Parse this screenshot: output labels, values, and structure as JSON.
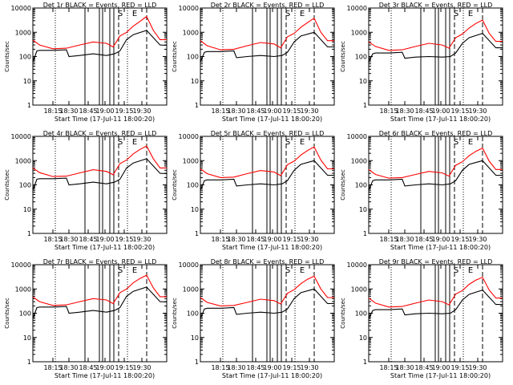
{
  "colors": {
    "background": "#ffffff",
    "axes": "#000000",
    "events": "#000000",
    "lld": "#ff0000"
  },
  "chart_data": [
    {
      "type": "line",
      "title": "Det 1r BLACK = Events, RED = LLD",
      "xlabel": "Start Time (17-Jul-11 18:00:20)",
      "ylabel": "Counts/sec",
      "xticks": [
        "18:15",
        "18:30",
        "18:45",
        "19:00",
        "19:15",
        "19:30"
      ],
      "yticks": [
        "1",
        "10",
        "100",
        "1000",
        "10000"
      ],
      "yscale": "log",
      "ylim": [
        1,
        10000
      ],
      "xlim": [
        0,
        100
      ],
      "markers": [
        "S",
        "E"
      ],
      "series": [
        {
          "name": "Events",
          "color": "#000000",
          "x": [
            0,
            3,
            5,
            15,
            25,
            27,
            35,
            45,
            55,
            61,
            65,
            70,
            75,
            85,
            95,
            100
          ],
          "y": [
            60,
            170,
            180,
            180,
            190,
            100,
            110,
            130,
            110,
            130,
            170,
            500,
            800,
            1200,
            300,
            290
          ]
        },
        {
          "name": "LLD",
          "color": "#ff0000",
          "x": [
            0,
            5,
            15,
            25,
            35,
            45,
            55,
            60,
            65,
            70,
            75,
            80,
            85,
            90,
            95,
            100
          ],
          "y": [
            480,
            300,
            210,
            220,
            300,
            400,
            350,
            250,
            700,
            1000,
            1800,
            2800,
            4500,
            1200,
            500,
            500
          ]
        }
      ]
    },
    {
      "type": "line",
      "title": "Det 2r BLACK = Events, RED = LLD",
      "xlabel": "Start Time (17-Jul-11 18:00:20)",
      "ylabel": "Counts/sec",
      "xticks": [
        "18:15",
        "18:30",
        "18:45",
        "19:00",
        "19:15",
        "19:30"
      ],
      "yticks": [
        "1",
        "10",
        "100",
        "1000",
        "10000"
      ],
      "yscale": "log",
      "ylim": [
        1,
        10000
      ],
      "xlim": [
        0,
        100
      ],
      "markers": [
        "S",
        "E"
      ],
      "series": [
        {
          "name": "Events",
          "color": "#000000",
          "x": [
            0,
            3,
            5,
            15,
            25,
            27,
            35,
            45,
            55,
            61,
            65,
            70,
            75,
            85,
            95,
            100
          ],
          "y": [
            60,
            150,
            160,
            160,
            170,
            90,
            100,
            110,
            100,
            110,
            150,
            400,
            700,
            1000,
            250,
            250
          ]
        },
        {
          "name": "LLD",
          "color": "#ff0000",
          "x": [
            0,
            5,
            15,
            25,
            35,
            45,
            55,
            60,
            65,
            70,
            75,
            80,
            85,
            90,
            95,
            100
          ],
          "y": [
            450,
            280,
            190,
            200,
            280,
            380,
            330,
            230,
            650,
            900,
            1600,
            2500,
            3800,
            1000,
            450,
            450
          ]
        }
      ]
    },
    {
      "type": "line",
      "title": "Det 3r BLACK = Events, RED = LLD",
      "xlabel": "Start Time (17-Jul-11 18:00:20)",
      "ylabel": "Counts/sec",
      "xticks": [
        "18:15",
        "18:30",
        "18:45",
        "19:00",
        "19:15",
        "19:30"
      ],
      "yticks": [
        "1",
        "10",
        "100",
        "1000",
        "10000"
      ],
      "yscale": "log",
      "ylim": [
        1,
        10000
      ],
      "xlim": [
        0,
        100
      ],
      "markers": [
        "S",
        "E"
      ],
      "series": [
        {
          "name": "Events",
          "color": "#000000",
          "x": [
            0,
            3,
            5,
            15,
            25,
            27,
            35,
            45,
            55,
            61,
            65,
            70,
            75,
            85,
            95,
            100
          ],
          "y": [
            60,
            130,
            140,
            140,
            150,
            85,
            95,
            100,
            95,
            100,
            140,
            350,
            600,
            900,
            230,
            230
          ]
        },
        {
          "name": "LLD",
          "color": "#ff0000",
          "x": [
            0,
            5,
            15,
            25,
            35,
            45,
            55,
            60,
            65,
            70,
            75,
            80,
            85,
            90,
            95,
            100
          ],
          "y": [
            400,
            260,
            180,
            190,
            260,
            350,
            300,
            220,
            600,
            850,
            1500,
            2300,
            3200,
            900,
            420,
            420
          ]
        }
      ]
    },
    {
      "type": "line",
      "title": "Det 4r BLACK = Events, RED = LLD",
      "xlabel": "Start Time (17-Jul-11 18:00:20)",
      "ylabel": "Counts/sec",
      "xticks": [
        "18:15",
        "18:30",
        "18:45",
        "19:00",
        "19:15",
        "19:30"
      ],
      "yticks": [
        "1",
        "10",
        "100",
        "1000",
        "10000"
      ],
      "yscale": "log",
      "ylim": [
        1,
        10000
      ],
      "xlim": [
        0,
        100
      ],
      "markers": [
        "S",
        "E"
      ],
      "series": [
        {
          "name": "Events",
          "color": "#000000",
          "x": [
            0,
            3,
            5,
            15,
            25,
            27,
            35,
            45,
            55,
            61,
            65,
            70,
            75,
            85,
            95,
            100
          ],
          "y": [
            60,
            170,
            180,
            180,
            190,
            100,
            110,
            130,
            110,
            130,
            170,
            500,
            800,
            1200,
            300,
            290
          ]
        },
        {
          "name": "LLD",
          "color": "#ff0000",
          "x": [
            0,
            5,
            15,
            25,
            35,
            45,
            55,
            60,
            65,
            70,
            75,
            80,
            85,
            90,
            95,
            100
          ],
          "y": [
            500,
            320,
            220,
            230,
            310,
            420,
            360,
            260,
            750,
            1050,
            1900,
            2900,
            4000,
            1200,
            500,
            500
          ]
        }
      ]
    },
    {
      "type": "line",
      "title": "Det 5r BLACK = Events, RED = LLD",
      "xlabel": "Start Time (17-Jul-11 18:00:20)",
      "ylabel": "Counts/sec",
      "xticks": [
        "18:15",
        "18:30",
        "18:45",
        "19:00",
        "19:15",
        "19:30"
      ],
      "yticks": [
        "1",
        "10",
        "100",
        "1000",
        "10000"
      ],
      "yscale": "log",
      "ylim": [
        1,
        10000
      ],
      "xlim": [
        0,
        100
      ],
      "markers": [
        "S",
        "E"
      ],
      "series": [
        {
          "name": "Events",
          "color": "#000000",
          "x": [
            0,
            3,
            5,
            15,
            25,
            27,
            35,
            45,
            55,
            61,
            65,
            70,
            75,
            85,
            95,
            100
          ],
          "y": [
            60,
            150,
            160,
            160,
            170,
            90,
            100,
            110,
            100,
            110,
            150,
            400,
            700,
            1000,
            250,
            250
          ]
        },
        {
          "name": "LLD",
          "color": "#ff0000",
          "x": [
            0,
            5,
            15,
            25,
            35,
            45,
            55,
            60,
            65,
            70,
            75,
            80,
            85,
            90,
            95,
            100
          ],
          "y": [
            460,
            290,
            200,
            210,
            290,
            390,
            340,
            240,
            680,
            950,
            1700,
            2600,
            3700,
            1050,
            460,
            460
          ]
        }
      ]
    },
    {
      "type": "line",
      "title": "Det 6r BLACK = Events, RED = LLD",
      "xlabel": "Start Time (17-Jul-11 18:00:20)",
      "ylabel": "Counts/sec",
      "xticks": [
        "18:15",
        "18:30",
        "18:45",
        "19:00",
        "19:15",
        "19:30"
      ],
      "yticks": [
        "1",
        "10",
        "100",
        "1000",
        "10000"
      ],
      "yscale": "log",
      "ylim": [
        1,
        10000
      ],
      "xlim": [
        0,
        100
      ],
      "markers": [
        "S",
        "E"
      ],
      "series": [
        {
          "name": "Events",
          "color": "#000000",
          "x": [
            0,
            3,
            5,
            15,
            25,
            27,
            35,
            45,
            55,
            61,
            65,
            70,
            75,
            85,
            95,
            100
          ],
          "y": [
            60,
            150,
            160,
            160,
            170,
            90,
            100,
            110,
            100,
            110,
            150,
            400,
            700,
            1000,
            250,
            250
          ]
        },
        {
          "name": "LLD",
          "color": "#ff0000",
          "x": [
            0,
            5,
            15,
            25,
            35,
            45,
            55,
            60,
            65,
            70,
            75,
            80,
            85,
            90,
            95,
            100
          ],
          "y": [
            430,
            270,
            190,
            200,
            270,
            360,
            310,
            230,
            640,
            900,
            1600,
            2400,
            3300,
            950,
            430,
            430
          ]
        }
      ]
    },
    {
      "type": "line",
      "title": "Det 7r BLACK = Events, RED = LLD",
      "xlabel": "Start Time (17-Jul-11 18:00:20)",
      "ylabel": "Counts/sec",
      "xticks": [
        "18:15",
        "18:30",
        "18:45",
        "19:00",
        "19:15",
        "19:30"
      ],
      "yticks": [
        "1",
        "10",
        "100",
        "1000",
        "10000"
      ],
      "yscale": "log",
      "ylim": [
        1,
        10000
      ],
      "xlim": [
        0,
        100
      ],
      "markers": [
        "S",
        "E"
      ],
      "series": [
        {
          "name": "Events",
          "color": "#000000",
          "x": [
            0,
            3,
            5,
            15,
            25,
            27,
            35,
            45,
            55,
            61,
            65,
            70,
            75,
            85,
            95,
            100
          ],
          "y": [
            60,
            170,
            180,
            180,
            190,
            100,
            110,
            130,
            110,
            130,
            170,
            500,
            800,
            1200,
            300,
            290
          ]
        },
        {
          "name": "LLD",
          "color": "#ff0000",
          "x": [
            0,
            5,
            15,
            25,
            35,
            45,
            55,
            60,
            65,
            70,
            75,
            80,
            85,
            90,
            95,
            100
          ],
          "y": [
            470,
            300,
            210,
            220,
            300,
            400,
            350,
            250,
            700,
            1000,
            1800,
            2700,
            3700,
            1100,
            480,
            480
          ]
        }
      ]
    },
    {
      "type": "line",
      "title": "Det 8r BLACK = Events, RED = LLD",
      "xlabel": "Start Time (17-Jul-11 18:00:20)",
      "ylabel": "Counts/sec",
      "xticks": [
        "18:15",
        "18:30",
        "18:45",
        "19:00",
        "19:15",
        "19:30"
      ],
      "yticks": [
        "1",
        "10",
        "100",
        "1000",
        "10000"
      ],
      "yscale": "log",
      "ylim": [
        1,
        10000
      ],
      "xlim": [
        0,
        100
      ],
      "markers": [
        "S",
        "E"
      ],
      "series": [
        {
          "name": "Events",
          "color": "#000000",
          "x": [
            0,
            3,
            5,
            15,
            25,
            27,
            35,
            45,
            55,
            61,
            65,
            70,
            75,
            85,
            95,
            100
          ],
          "y": [
            60,
            150,
            160,
            160,
            170,
            90,
            100,
            110,
            100,
            110,
            150,
            400,
            700,
            1000,
            250,
            250
          ]
        },
        {
          "name": "LLD",
          "color": "#ff0000",
          "x": [
            0,
            5,
            15,
            25,
            35,
            45,
            55,
            60,
            65,
            70,
            75,
            80,
            85,
            90,
            95,
            100
          ],
          "y": [
            440,
            280,
            200,
            210,
            280,
            380,
            330,
            240,
            660,
            930,
            1650,
            2500,
            3400,
            1000,
            440,
            440
          ]
        }
      ]
    },
    {
      "type": "line",
      "title": "Det 9r BLACK = Events, RED = LLD",
      "xlabel": "Start Time (17-Jul-11 18:00:20)",
      "ylabel": "Counts/sec",
      "xticks": [
        "18:15",
        "18:30",
        "18:45",
        "19:00",
        "19:15",
        "19:30"
      ],
      "yticks": [
        "1",
        "10",
        "100",
        "1000",
        "10000"
      ],
      "yscale": "log",
      "ylim": [
        1,
        10000
      ],
      "xlim": [
        0,
        100
      ],
      "markers": [
        "S",
        "E"
      ],
      "series": [
        {
          "name": "Events",
          "color": "#000000",
          "x": [
            0,
            3,
            5,
            15,
            25,
            27,
            35,
            45,
            55,
            61,
            65,
            70,
            75,
            85,
            95,
            100
          ],
          "y": [
            60,
            130,
            140,
            140,
            150,
            85,
            95,
            100,
            95,
            100,
            140,
            350,
            600,
            900,
            230,
            230
          ]
        },
        {
          "name": "LLD",
          "color": "#ff0000",
          "x": [
            0,
            5,
            15,
            25,
            35,
            45,
            55,
            60,
            65,
            70,
            75,
            80,
            85,
            90,
            95,
            100
          ],
          "y": [
            420,
            260,
            180,
            190,
            260,
            350,
            300,
            220,
            610,
            860,
            1550,
            2300,
            3000,
            900,
            420,
            420
          ]
        }
      ]
    }
  ]
}
